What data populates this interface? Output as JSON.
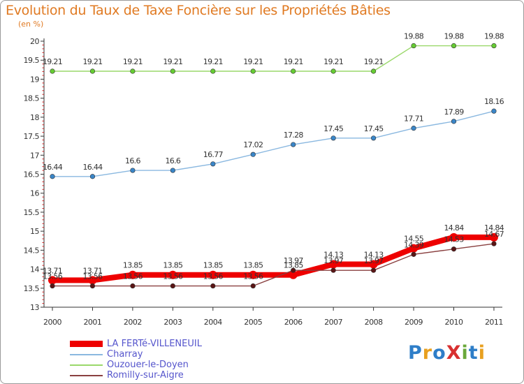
{
  "chart_data": {
    "type": "line",
    "title": "Evolution du Taux de Taxe Foncière sur les Propriétés Bâties",
    "unit_label": "(en %)",
    "xlabel": "",
    "ylabel": "",
    "ylim": [
      13,
      20
    ],
    "y_ticks": [
      "13",
      "13.5",
      "14",
      "14.5",
      "15",
      "15.5",
      "16",
      "16.5",
      "17",
      "17.5",
      "18",
      "18.5",
      "19",
      "19.5",
      "20"
    ],
    "categories": [
      "2000",
      "2001",
      "2002",
      "2003",
      "2004",
      "2005",
      "2006",
      "2007",
      "2008",
      "2009",
      "2010",
      "2011"
    ],
    "grid": false,
    "legend_position": "bottom-left",
    "series": [
      {
        "name": "LA FERTé-VILLENEUIL",
        "color": "#ee0000",
        "values": [
          13.71,
          13.71,
          13.85,
          13.85,
          13.85,
          13.85,
          13.85,
          14.13,
          14.13,
          14.55,
          14.84,
          14.84
        ],
        "labels": [
          "13.71",
          "13.71",
          "13.85",
          "13.85",
          "13.85",
          "13.85",
          "13.85",
          "14.13",
          "14.13",
          "14.55",
          "14.84",
          "14.84"
        ]
      },
      {
        "name": "Charray",
        "color": "#8ab8e0",
        "marker_color": "#3a86c8",
        "values": [
          16.44,
          16.44,
          16.6,
          16.6,
          16.77,
          17.02,
          17.28,
          17.45,
          17.45,
          17.71,
          17.89,
          18.16
        ],
        "labels": [
          "16.44",
          "16.44",
          "16.6",
          "16.6",
          "16.77",
          "17.02",
          "17.28",
          "17.45",
          "17.45",
          "17.71",
          "17.89",
          "18.16"
        ]
      },
      {
        "name": "Ouzouer-le-Doyen",
        "color": "#9ad86a",
        "marker_color": "#66cc33",
        "values": [
          19.21,
          19.21,
          19.21,
          19.21,
          19.21,
          19.21,
          19.21,
          19.21,
          19.21,
          19.88,
          19.88,
          19.88
        ],
        "labels": [
          "19.21",
          "19.21",
          "19.21",
          "19.21",
          "19.21",
          "19.21",
          "19.21",
          "19.21",
          "19.21",
          "19.88",
          "19.88",
          "19.88"
        ]
      },
      {
        "name": "Romilly-sur-Aigre",
        "color": "#8a4040",
        "marker_color": "#5a1515",
        "values": [
          13.56,
          13.56,
          13.56,
          13.56,
          13.56,
          13.56,
          13.97,
          13.97,
          13.97,
          14.39,
          14.53,
          14.67
        ],
        "labels": [
          "13.56",
          "13.56",
          "13.56",
          "13.56",
          "13.56",
          "13.56",
          "13.97",
          "13.97",
          "13.97",
          "14.39",
          "14.53",
          "14.67"
        ]
      }
    ]
  },
  "logo": {
    "text": "ProXiti",
    "letters": [
      "P",
      "r",
      "o",
      "X",
      "i",
      "t",
      "i"
    ],
    "colors": [
      "#2e7ec8",
      "#e8a020",
      "#2e7ec8",
      "#d83030",
      "#6aa83a",
      "#2e7ec8",
      "#e8a020"
    ]
  }
}
